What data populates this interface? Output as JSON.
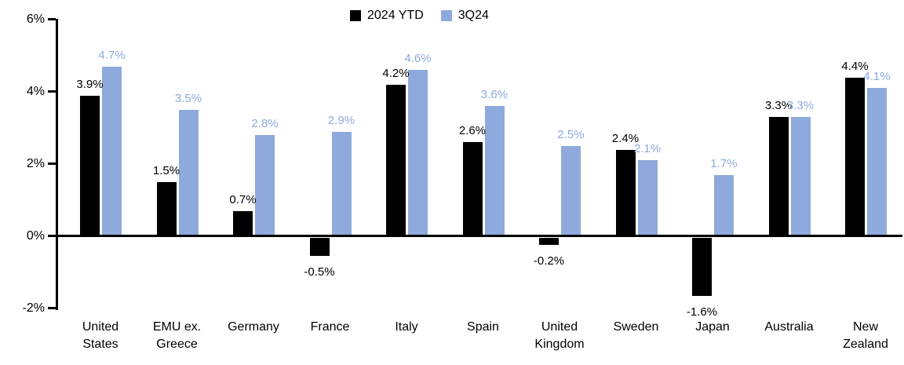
{
  "chart_data": {
    "type": "bar",
    "title": "",
    "categories": [
      "United States",
      "EMU ex. Greece",
      "Germany",
      "France",
      "Italy",
      "Spain",
      "United Kingdom",
      "Sweden",
      "Japan",
      "Australia",
      "New Zealand"
    ],
    "series": [
      {
        "name": "2024 YTD",
        "color": "#000000",
        "values": [
          3.9,
          1.5,
          0.7,
          -0.5,
          4.2,
          2.6,
          -0.2,
          2.4,
          -1.6,
          3.3,
          4.4
        ]
      },
      {
        "name": "3Q24",
        "color": "#8EA9DB",
        "values": [
          4.7,
          3.5,
          2.8,
          2.9,
          4.6,
          3.6,
          2.5,
          2.1,
          1.7,
          3.3,
          4.1
        ]
      }
    ],
    "value_labels": true,
    "value_label_suffix": "%",
    "ylim": [
      -2,
      6
    ],
    "yticks": [
      6,
      4,
      2,
      0,
      -2
    ],
    "ytick_labels": [
      "6%",
      "4%",
      "2%",
      "0%",
      "-2%"
    ],
    "xlabel": "",
    "ylabel": "",
    "grid": false,
    "legend_position": "top-center"
  }
}
